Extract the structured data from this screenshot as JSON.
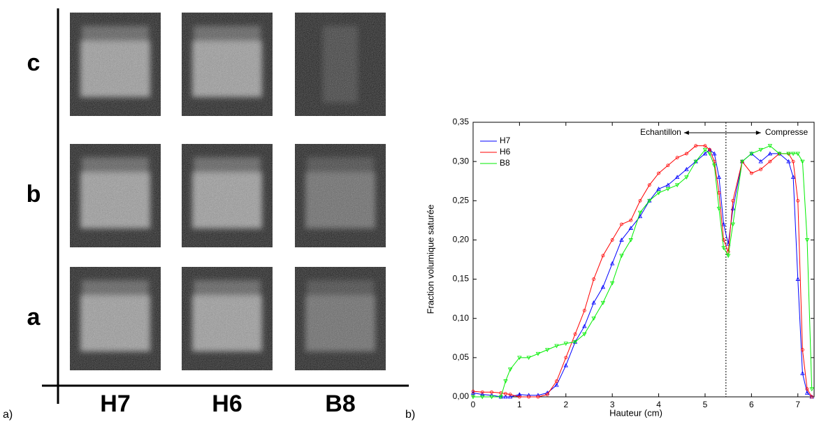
{
  "panel_a": {
    "label": "a)",
    "rows": [
      "c",
      "b",
      "a"
    ],
    "columns": [
      "H7",
      "H6",
      "B8"
    ]
  },
  "panel_b": {
    "label": "b)"
  },
  "chart_data": {
    "type": "line",
    "x_label": "Hauteur (cm)",
    "y_label": "Fraction volumique saturée",
    "x": [
      0,
      0.2,
      0.4,
      0.6,
      0.7,
      0.8,
      1.0,
      1.2,
      1.4,
      1.6,
      1.8,
      2.0,
      2.2,
      2.4,
      2.6,
      2.8,
      3.0,
      3.2,
      3.4,
      3.6,
      3.8,
      4.0,
      4.2,
      4.4,
      4.6,
      4.8,
      5.0,
      5.1,
      5.2,
      5.3,
      5.4,
      5.5,
      5.6,
      5.8,
      6.0,
      6.2,
      6.4,
      6.6,
      6.8,
      6.9,
      7.0,
      7.1,
      7.2,
      7.3
    ],
    "series": [
      {
        "name": "H7",
        "color": "#0000ff",
        "marker": "triangle",
        "values": [
          0.005,
          0.003,
          0.002,
          0.0,
          0.0,
          0.0,
          0.003,
          0.002,
          0.002,
          0.005,
          0.015,
          0.04,
          0.07,
          0.09,
          0.12,
          0.14,
          0.17,
          0.2,
          0.215,
          0.23,
          0.25,
          0.265,
          0.27,
          0.28,
          0.29,
          0.3,
          0.31,
          0.315,
          0.31,
          0.28,
          0.22,
          0.195,
          0.24,
          0.3,
          0.31,
          0.3,
          0.31,
          0.31,
          0.3,
          0.28,
          0.15,
          0.03,
          0.005,
          0.0
        ]
      },
      {
        "name": "H6",
        "color": "#ff0000",
        "marker": "circle",
        "values": [
          0.007,
          0.006,
          0.006,
          0.005,
          0.004,
          0.003,
          0.0,
          0.0,
          0.0,
          0.003,
          0.02,
          0.05,
          0.08,
          0.11,
          0.15,
          0.18,
          0.2,
          0.22,
          0.225,
          0.25,
          0.27,
          0.285,
          0.295,
          0.305,
          0.31,
          0.32,
          0.32,
          0.315,
          0.3,
          0.26,
          0.2,
          0.185,
          0.25,
          0.3,
          0.285,
          0.29,
          0.3,
          0.31,
          0.31,
          0.3,
          0.25,
          0.06,
          0.01,
          0.0
        ]
      },
      {
        "name": "B8",
        "color": "#00ee00",
        "marker": "down-triangle",
        "values": [
          0.0,
          0.0,
          0.0,
          0.0,
          0.02,
          0.035,
          0.05,
          0.05,
          0.055,
          0.06,
          0.065,
          0.068,
          0.07,
          0.08,
          0.1,
          0.12,
          0.145,
          0.18,
          0.2,
          0.235,
          0.25,
          0.26,
          0.265,
          0.27,
          0.28,
          0.3,
          0.315,
          0.31,
          0.295,
          0.24,
          0.19,
          0.18,
          0.22,
          0.3,
          0.31,
          0.315,
          0.32,
          0.31,
          0.31,
          0.31,
          0.31,
          0.3,
          0.2,
          0.01
        ]
      }
    ],
    "xlim": [
      0,
      7.35
    ],
    "xticks": [
      0,
      1,
      2,
      3,
      4,
      5,
      6,
      7
    ],
    "ylim": [
      0,
      0.35
    ],
    "yticks": [
      {
        "value": 0,
        "label": "0,00"
      },
      {
        "value": 0.05,
        "label": "0,05"
      },
      {
        "value": 0.1,
        "label": "0,10"
      },
      {
        "value": 0.15,
        "label": "0,15"
      },
      {
        "value": 0.2,
        "label": "0,20"
      },
      {
        "value": 0.25,
        "label": "0,25"
      },
      {
        "value": 0.3,
        "label": "0,30"
      },
      {
        "value": 0.35,
        "label": "0,35"
      }
    ],
    "divider_x": 5.45,
    "annotations": [
      {
        "text": "Echantillon"
      },
      {
        "text": "Compresse"
      }
    ],
    "legend": "top-left"
  }
}
